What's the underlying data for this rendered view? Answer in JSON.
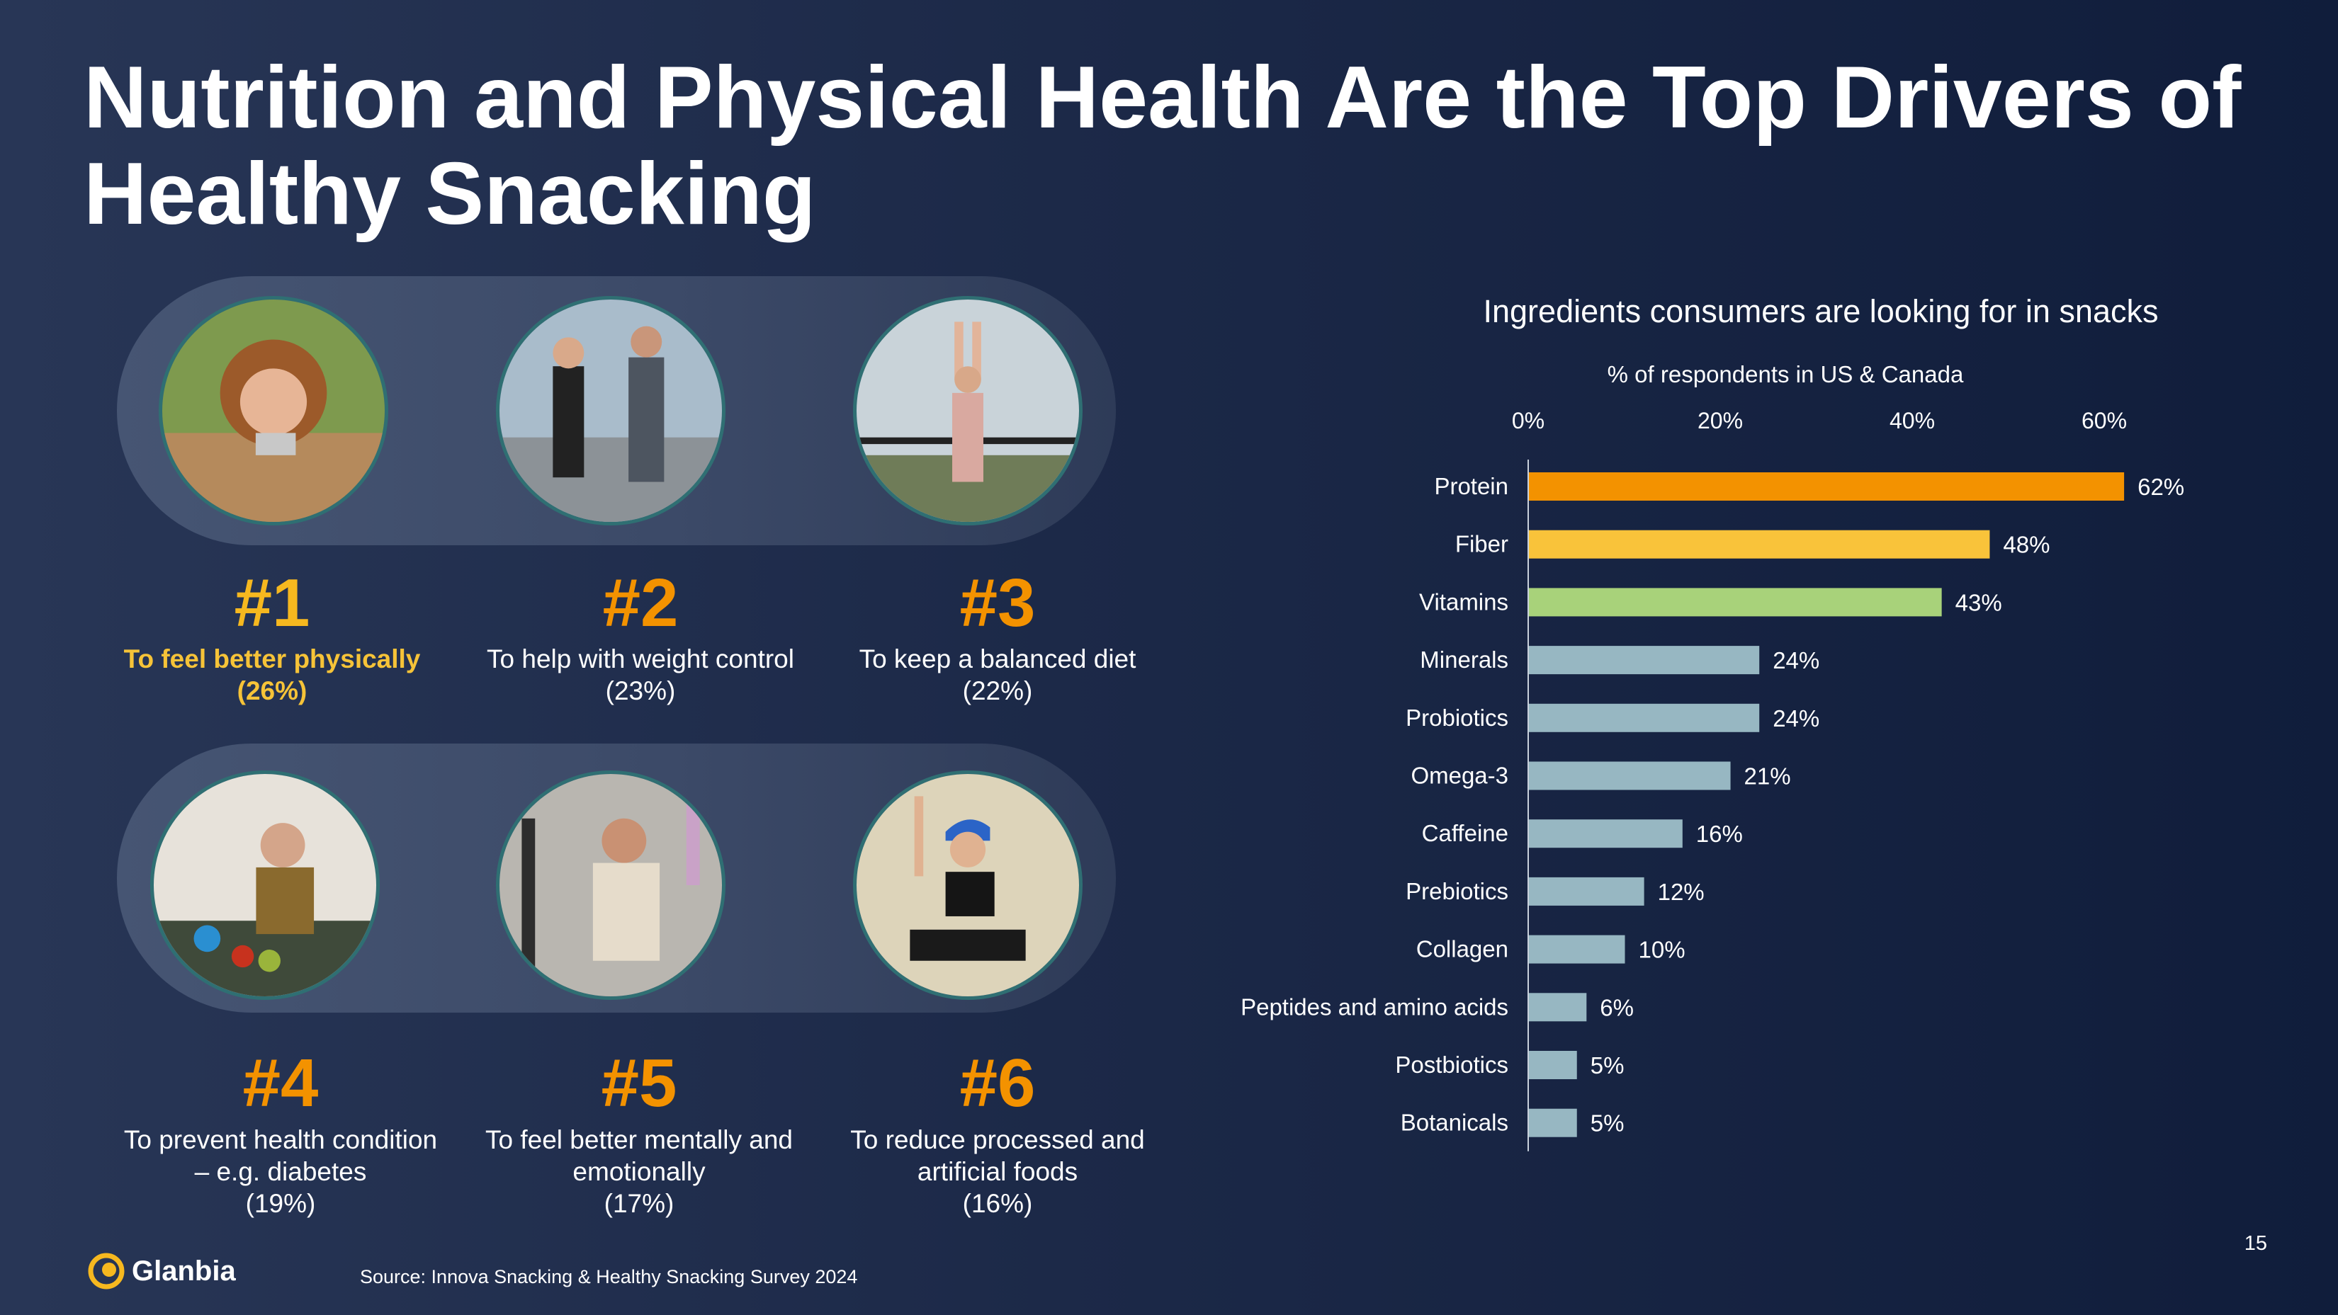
{
  "title": "Nutrition and Physical Health Are the Top Drivers of Healthy Snacking",
  "drivers": [
    {
      "rank": "#1",
      "lines": [
        "To feel better physically",
        "(26%)"
      ],
      "highlight": true,
      "photo": "woman-eating-snack-bar-photo"
    },
    {
      "rank": "#2",
      "lines": [
        "To help with weight control",
        "(23%)"
      ],
      "highlight": false,
      "photo": "couple-stretching-photo"
    },
    {
      "rank": "#3",
      "lines": [
        "To keep a balanced diet",
        "(22%)"
      ],
      "highlight": false,
      "photo": "woman-stretching-arms-up-photo"
    },
    {
      "rank": "#4",
      "lines": [
        "To prevent health condition",
        "– e.g. diabetes",
        "(19%)"
      ],
      "highlight": false,
      "photo": "man-cooking-vegetables-photo"
    },
    {
      "rank": "#5",
      "lines": [
        "To feel better mentally and",
        "emotionally",
        "(17%)"
      ],
      "highlight": false,
      "photo": "man-at-gym-photo"
    },
    {
      "rank": "#6",
      "lines": [
        "To reduce processed and",
        "artificial foods",
        "(16%)"
      ],
      "highlight": false,
      "photo": "woman-yoga-cap-photo"
    }
  ],
  "chart_data": {
    "type": "bar",
    "orientation": "horizontal",
    "title": "Ingredients consumers are looking for in snacks",
    "subtitle": "% of respondents in US & Canada",
    "categories": [
      "Protein",
      "Fiber",
      "Vitamins",
      "Minerals",
      "Probiotics",
      "Omega-3",
      "Caffeine",
      "Prebiotics",
      "Collagen",
      "Peptides and amino acids",
      "Postbiotics",
      "Botanicals"
    ],
    "values": [
      62,
      48,
      43,
      24,
      24,
      21,
      16,
      12,
      10,
      6,
      5,
      5
    ],
    "data_labels": [
      "62%",
      "48%",
      "43%",
      "24%",
      "24%",
      "21%",
      "16%",
      "12%",
      "10%",
      "6%",
      "5%",
      "5%"
    ],
    "bar_colors": [
      "#f39200",
      "#f9c33a",
      "#a8d27a",
      "#97b7c2",
      "#97b7c2",
      "#97b7c2",
      "#97b7c2",
      "#97b7c2",
      "#97b7c2",
      "#97b7c2",
      "#97b7c2",
      "#97b7c2"
    ],
    "xlim": [
      0,
      60
    ],
    "xticks": [
      "0%",
      "20%",
      "40%",
      "60%"
    ],
    "xtick_values": [
      0,
      20,
      40,
      60
    ],
    "axis_position": "top",
    "grid": false
  },
  "footer": {
    "logo_text": "Glanbia",
    "source": "Source: Innova Snacking & Healthy Snacking Survey 2024",
    "page_number": "15"
  },
  "colors": {
    "accent_orange": "#f39200",
    "accent_gold": "#f6b81f",
    "background_dark": "#101d3b"
  }
}
